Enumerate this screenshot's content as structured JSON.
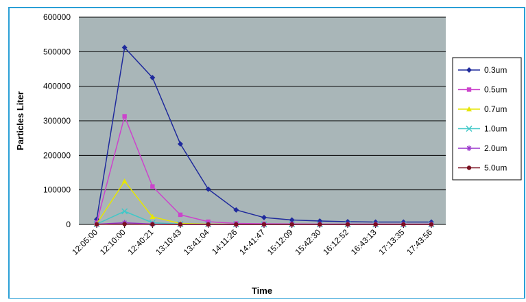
{
  "colors": {
    "plot_background": "#a9b6b8",
    "frame_border": "#2a9fd6",
    "gridline": "#000000"
  },
  "chart_data": {
    "type": "line",
    "xlabel": "Time",
    "ylabel": "Particles Liter",
    "ylim": [
      0,
      600000
    ],
    "yticks": [
      0,
      100000,
      200000,
      300000,
      400000,
      500000,
      600000
    ],
    "ytick_labels": [
      "0",
      "100000",
      "200000",
      "300000",
      "400000",
      "500000",
      "600000"
    ],
    "categories": [
      "12:05:00",
      "12:10:00",
      "12:40:21",
      "13:10:43",
      "13:41:04",
      "14:11:26",
      "14:41:47",
      "15:12:09",
      "15:42:30",
      "16:12:52",
      "16:43:13",
      "17:13:35",
      "17:43:56"
    ],
    "grid": "horizontal",
    "legend_position": "right",
    "series": [
      {
        "name": "0.3um",
        "color": "#1f2a9c",
        "marker": "diamond",
        "values": [
          15000,
          512000,
          425000,
          233000,
          102000,
          42000,
          20000,
          13000,
          10000,
          8000,
          7000,
          7000,
          7000
        ]
      },
      {
        "name": "0.5um",
        "color": "#cc44cc",
        "marker": "square",
        "values": [
          5000,
          313000,
          110000,
          28000,
          8000,
          3000,
          2000,
          1500,
          1000,
          1000,
          1000,
          1000,
          1000
        ]
      },
      {
        "name": "0.7um",
        "color": "#e6e600",
        "marker": "triangle",
        "values": [
          2000,
          125000,
          22000,
          3000,
          1000,
          500,
          500,
          500,
          500,
          500,
          500,
          500,
          500
        ]
      },
      {
        "name": "1.0um",
        "color": "#40c8c8",
        "marker": "x",
        "values": [
          1000,
          38000,
          5000,
          1000,
          500,
          300,
          300,
          300,
          300,
          300,
          300,
          300,
          300
        ]
      },
      {
        "name": "2.0um",
        "color": "#9933cc",
        "marker": "star",
        "values": [
          500,
          5000,
          1000,
          300,
          200,
          100,
          100,
          100,
          100,
          100,
          100,
          100,
          100
        ]
      },
      {
        "name": "5.0um",
        "color": "#7a1020",
        "marker": "circle",
        "values": [
          200,
          1000,
          200,
          100,
          100,
          50,
          50,
          50,
          50,
          50,
          50,
          50,
          50
        ]
      }
    ]
  }
}
